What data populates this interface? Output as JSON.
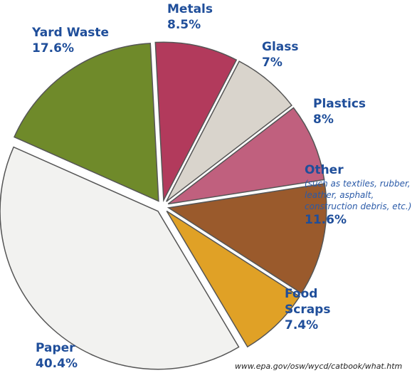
{
  "chart_data": {
    "type": "pie",
    "categories": [
      "Metals",
      "Glass",
      "Plastics",
      "Other",
      "Food Scraps",
      "Paper",
      "Yard Waste"
    ],
    "values": [
      8.5,
      7,
      8,
      11.6,
      7.4,
      40.4,
      17.6
    ],
    "value_labels": [
      "8.5%",
      "7%",
      "8%",
      "11.6%",
      "7.4%",
      "40.4%",
      "17.6%"
    ],
    "colors": [
      "#b23a5c",
      "#d9d4cc",
      "#c0607e",
      "#9a5a2c",
      "#e0a126",
      "#f2f2f0",
      "#6f8a2a"
    ],
    "other_note": "(such as textiles, rubber, leather, asphalt, construction debris, etc.)",
    "source": "www.epa.gov/osw/wycd/catbook/what.htm"
  }
}
